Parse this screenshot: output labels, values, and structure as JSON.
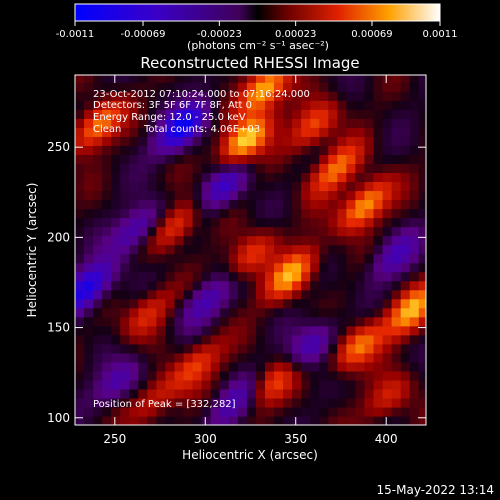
{
  "chart_data": {
    "type": "heatmap",
    "title": "Reconstructed RHESSI Image",
    "xlabel": "Heliocentric X (arcsec)",
    "ylabel": "Heliocentric Y (arcsec)",
    "xlim": [
      228,
      422
    ],
    "ylim": [
      96,
      290
    ],
    "x_ticks": [
      250,
      300,
      350,
      400
    ],
    "y_ticks": [
      100,
      150,
      200,
      250
    ],
    "colorbar": {
      "range": [
        -0.0011,
        0.0011
      ],
      "tick_values": [
        -0.0011,
        -0.00069,
        -0.00023,
        0.00023,
        0.00069,
        0.0011
      ],
      "tick_labels": [
        "-0.0011",
        "-0.00069",
        "-0.00023",
        "0.00023",
        "0.00069",
        "0.0011"
      ],
      "label": "(photons cm⁻² s⁻¹ asec⁻²)"
    },
    "annotations": {
      "time_range": "23-Oct-2012 07:10:24.000 to 07:16:24.000",
      "detectors": "Detectors: 3F 5F 6F 7F 8F, Att 0",
      "energy": "Energy Range: 12.0 - 25.0 keV",
      "method": "Clean",
      "counts": "Total counts: 4.06E+03",
      "peak": "Position of Peak = [332,282]"
    },
    "sources": [
      {
        "x": 322,
        "y": 254,
        "intensity": 0.9
      },
      {
        "x": 372,
        "y": 238,
        "intensity": 0.6
      },
      {
        "x": 388,
        "y": 218,
        "intensity": 0.8
      },
      {
        "x": 348,
        "y": 180,
        "intensity": 0.75
      },
      {
        "x": 240,
        "y": 262,
        "intensity": 0.7
      },
      {
        "x": 332,
        "y": 282,
        "intensity": 0.85
      },
      {
        "x": 414,
        "y": 160,
        "intensity": 0.7
      },
      {
        "x": 385,
        "y": 140,
        "intensity": 0.65
      },
      {
        "x": 285,
        "y": 208,
        "intensity": 0.55
      },
      {
        "x": 325,
        "y": 190,
        "intensity": 0.5
      },
      {
        "x": 268,
        "y": 158,
        "intensity": 0.45
      },
      {
        "x": 295,
        "y": 130,
        "intensity": 0.5
      },
      {
        "x": 272,
        "y": 110,
        "intensity": 0.4
      },
      {
        "x": 338,
        "y": 120,
        "intensity": 0.5
      },
      {
        "x": 402,
        "y": 112,
        "intensity": 0.4
      },
      {
        "x": 360,
        "y": 262,
        "intensity": 0.55
      }
    ],
    "minima": [
      {
        "x": 288,
        "y": 262,
        "intensity": -0.9
      },
      {
        "x": 235,
        "y": 172,
        "intensity": -0.85
      },
      {
        "x": 310,
        "y": 228,
        "intensity": -0.6
      },
      {
        "x": 262,
        "y": 205,
        "intensity": -0.55
      },
      {
        "x": 358,
        "y": 140,
        "intensity": -0.55
      },
      {
        "x": 300,
        "y": 165,
        "intensity": -0.5
      },
      {
        "x": 404,
        "y": 190,
        "intensity": -0.45
      },
      {
        "x": 252,
        "y": 120,
        "intensity": -0.45
      },
      {
        "x": 315,
        "y": 108,
        "intensity": -0.45
      }
    ]
  },
  "footer": {
    "timestamp": "15-May-2022 13:14"
  }
}
